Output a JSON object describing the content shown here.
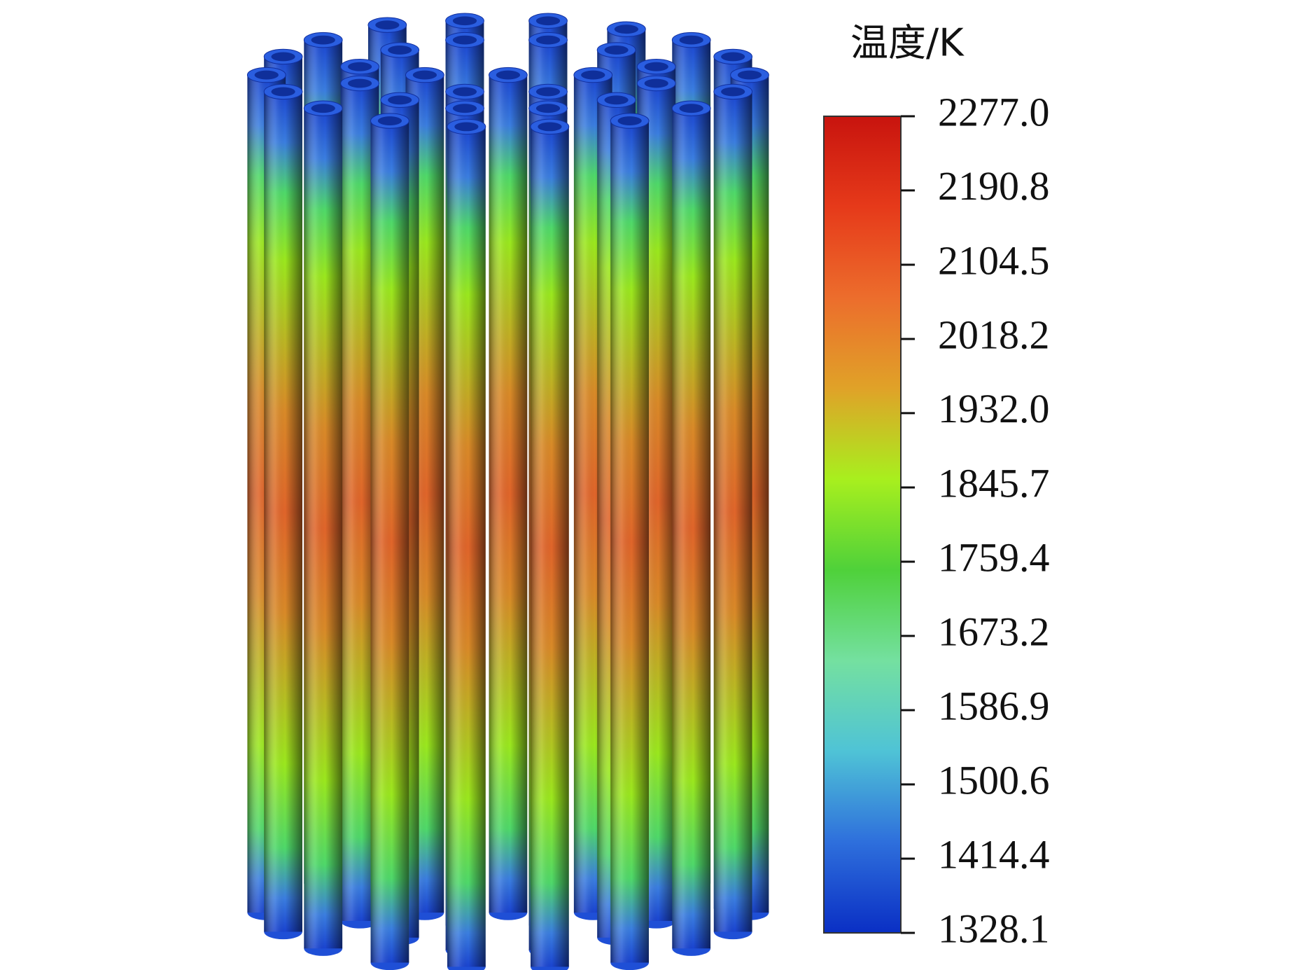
{
  "chart_data": {
    "type": "contour",
    "colorbar_title": "温度/K",
    "clim": [
      1328.1,
      2277.0
    ],
    "cticks": [
      1328.1,
      1414.4,
      1500.6,
      1586.9,
      1673.2,
      1759.4,
      1845.7,
      {
        "value": 1932.0,
        "label": "1932.0"
      },
      2018.2,
      2104.5,
      2190.8,
      {
        "value": 2277.0,
        "label": "2277.0"
      }
    ],
    "colormap": [
      "#0a2fc4",
      "#2e6fdc",
      "#4fc3d6",
      "#74e0a0",
      "#4fd13a",
      "#a8ef1e",
      "#e0a228",
      "#ec6d2c",
      "#e63a1a",
      "#c8140e"
    ]
  }
}
